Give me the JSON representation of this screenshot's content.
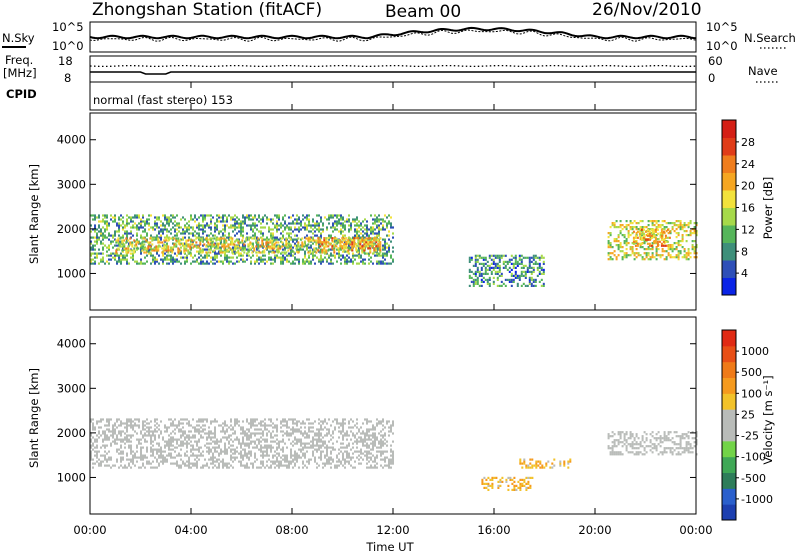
{
  "header": {
    "title": "Zhongshan Station (fitACF)",
    "beam": "Beam 00",
    "date": "26/Nov/2010"
  },
  "noise_panel": {
    "left_label": "N.Sky",
    "right_label": "N.Search",
    "left_ticks": [
      "10^5",
      "10^0"
    ],
    "right_ticks": [
      "10^5",
      "10^0"
    ]
  },
  "freq_panel": {
    "left_label_1": "Freq.",
    "left_label_2": "[MHz]",
    "right_label": "Nave",
    "left_ticks": [
      "18",
      "8"
    ],
    "right_ticks": [
      "60",
      "0"
    ]
  },
  "cpid_panel": {
    "label": "CPID",
    "mode_text": "normal (fast stereo) 153"
  },
  "power_panel": {
    "ylabel": "Slant Range [km]",
    "yticks": [
      "4000",
      "3000",
      "2000",
      "1000"
    ],
    "colorbar_label": "Power [dB]",
    "colorbar_ticks": [
      "28",
      "24",
      "20",
      "16",
      "12",
      "8",
      "4"
    ],
    "colorbar_colors": [
      "#0a24e6",
      "#2e4fb8",
      "#3e8f7a",
      "#55b55a",
      "#a6d94a",
      "#f2e23c",
      "#f5a622",
      "#ef7d1d",
      "#e03c18",
      "#d41f16"
    ]
  },
  "velocity_panel": {
    "ylabel": "Slant Range [km]",
    "yticks": [
      "4000",
      "3000",
      "2000",
      "1000"
    ],
    "colorbar_label": "Velocity [m s⁻¹]",
    "colorbar_ticks": [
      "1000",
      "500",
      "100",
      "25",
      "-25",
      "-100",
      "-500",
      "-1000"
    ],
    "colorbar_colors": [
      "#1c3fb0",
      "#2a5fcc",
      "#2e7d5a",
      "#3fa856",
      "#72d448",
      "#b9bcb9",
      "#b9bcb9",
      "#f2c22a",
      "#f59a1e",
      "#ef7a18",
      "#e84f16",
      "#e02a14"
    ]
  },
  "x_axis": {
    "ticks": [
      "00:00",
      "04:00",
      "08:00",
      "12:00",
      "16:00",
      "20:00",
      "00:00"
    ],
    "label": "Time UT"
  },
  "chart_data": {
    "type": "heatmap",
    "title": "Zhongshan Station (fitACF)   Beam 00   26/Nov/2010",
    "xlabel": "Time UT",
    "xlim_hours": [
      0,
      24
    ],
    "ylabel": "Slant Range [km]",
    "ylim_km": [
      180,
      4600
    ],
    "panels": [
      {
        "name": "Power [dB]",
        "clim": [
          0,
          32
        ],
        "regions": [
          {
            "t_start": 0.0,
            "t_end": 12.0,
            "range_km": [
              1200,
              2300
            ],
            "value_db": 10
          },
          {
            "t_start": 1.0,
            "t_end": 11.5,
            "range_km": [
              1450,
              1800
            ],
            "value_db": 18
          },
          {
            "t_start": 9.0,
            "t_end": 11.5,
            "range_km": [
              1500,
              1800
            ],
            "value_db": 22
          },
          {
            "t_start": 15.0,
            "t_end": 18.0,
            "range_km": [
              700,
              1400
            ],
            "value_db": 8
          },
          {
            "t_start": 20.5,
            "t_end": 24.0,
            "range_km": [
              1300,
              2200
            ],
            "value_db": 16
          },
          {
            "t_start": 21.5,
            "t_end": 23.0,
            "range_km": [
              1600,
              2000
            ],
            "value_db": 22
          }
        ]
      },
      {
        "name": "Velocity [m s⁻¹]",
        "clim": [
          -1000,
          1000
        ],
        "regions": [
          {
            "t_start": 0.0,
            "t_end": 12.0,
            "range_km": [
              1200,
              2300
            ],
            "value_ms": 0
          },
          {
            "t_start": 15.5,
            "t_end": 17.5,
            "range_km": [
              700,
              1000
            ],
            "value_ms": -300
          },
          {
            "t_start": 17.0,
            "t_end": 19.0,
            "range_km": [
              1200,
              1400
            ],
            "value_ms": -300
          },
          {
            "t_start": 20.5,
            "t_end": 24.0,
            "range_km": [
              1500,
              2000
            ],
            "value_ms": 0
          }
        ]
      }
    ]
  }
}
